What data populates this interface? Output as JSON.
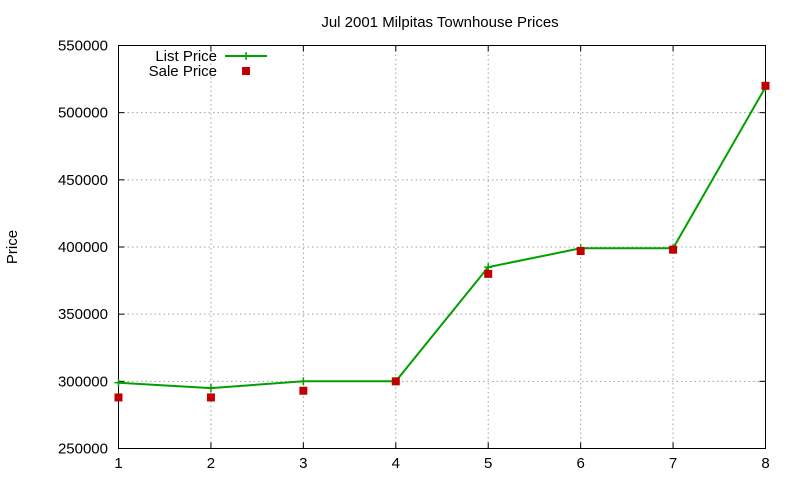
{
  "colors": {
    "list_price": "#00a000",
    "sale_price": "#c00000",
    "grid": "#a0a0a0"
  },
  "chart_data": {
    "type": "line",
    "title": "Jul 2001 Milpitas Townhouse Prices",
    "xlabel": "",
    "ylabel": "Price",
    "x": [
      1,
      2,
      3,
      4,
      5,
      6,
      7,
      8
    ],
    "xlim": [
      1,
      8
    ],
    "ylim": [
      250000,
      550000
    ],
    "xticks": [
      "1",
      "2",
      "3",
      "4",
      "5",
      "6",
      "7",
      "8"
    ],
    "yticks": [
      "250000",
      "300000",
      "350000",
      "400000",
      "450000",
      "500000",
      "550000"
    ],
    "grid": true,
    "legend_position": "top-left",
    "series": [
      {
        "name": "List Price",
        "style": "line+plus",
        "values": [
          299000,
          295000,
          300000,
          300000,
          385000,
          399000,
          399000,
          519000
        ]
      },
      {
        "name": "Sale Price",
        "style": "square",
        "values": [
          288000,
          288000,
          293000,
          300000,
          380000,
          397000,
          398000,
          520000
        ]
      }
    ]
  }
}
